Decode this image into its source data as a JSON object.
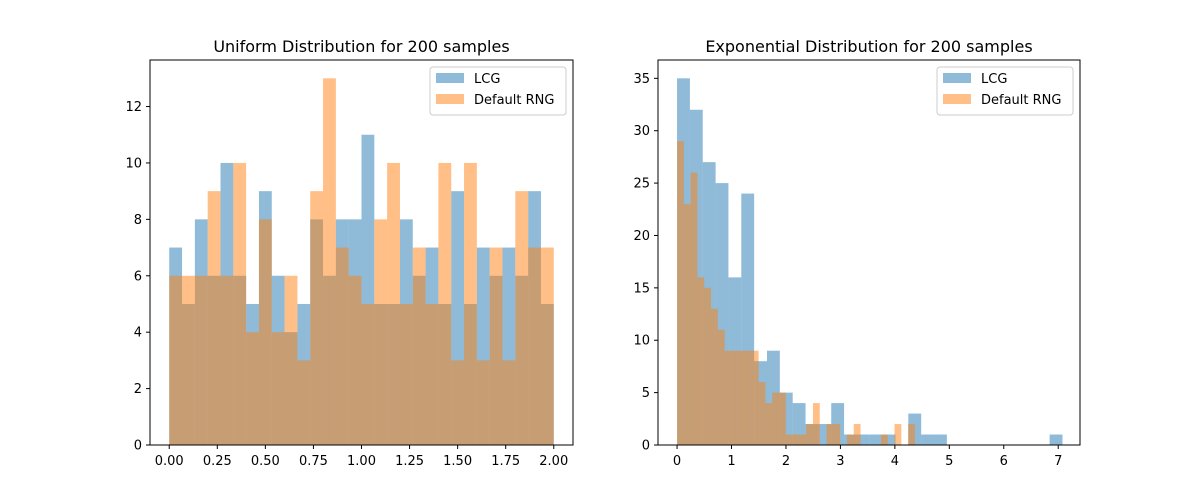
{
  "chart_data": [
    {
      "type": "histogram",
      "title": "Uniform Distribution for 200 samples",
      "xlabel": "",
      "ylabel": "",
      "xlim": [
        -0.1,
        2.1
      ],
      "ylim": [
        0,
        13.65
      ],
      "xticks": [
        0,
        0.25,
        0.5,
        0.75,
        1,
        1.25,
        1.5,
        1.75,
        2
      ],
      "xtick_labels": [
        "0.00",
        "0.25",
        "0.50",
        "0.75",
        "1.00",
        "1.25",
        "1.50",
        "1.75",
        "2.00"
      ],
      "yticks": [
        0,
        2,
        4,
        6,
        8,
        10,
        12
      ],
      "ytick_labels": [
        "0",
        "2",
        "4",
        "6",
        "8",
        "10",
        "12"
      ],
      "grid": false,
      "legend_position": "top-right",
      "series": [
        {
          "name": "LCG",
          "color": "#1f77b4",
          "bin_edges": [
            0.0,
            0.0667,
            0.1333,
            0.2,
            0.2667,
            0.3333,
            0.4,
            0.4667,
            0.5333,
            0.6,
            0.6667,
            0.7333,
            0.8,
            0.8667,
            0.9333,
            1.0,
            1.0667,
            1.1333,
            1.2,
            1.2667,
            1.3333,
            1.4,
            1.4667,
            1.5333,
            1.6,
            1.6667,
            1.7333,
            1.8,
            1.8667,
            1.9333,
            2.0
          ],
          "values": [
            7,
            5,
            8,
            6,
            10,
            6,
            5,
            9,
            6,
            4,
            5,
            8,
            6,
            8,
            8,
            11,
            5,
            5,
            8,
            6,
            7,
            5,
            9,
            5,
            7,
            6,
            7,
            6,
            9,
            5
          ]
        },
        {
          "name": "Default RNG",
          "color": "#ff7f0e",
          "bin_edges": [
            0.0,
            0.0667,
            0.1333,
            0.2,
            0.2667,
            0.3333,
            0.4,
            0.4667,
            0.5333,
            0.6,
            0.6667,
            0.7333,
            0.8,
            0.8667,
            0.9333,
            1.0,
            1.0667,
            1.1333,
            1.2,
            1.2667,
            1.3333,
            1.4,
            1.4667,
            1.5333,
            1.6,
            1.6667,
            1.7333,
            1.8,
            1.8667,
            1.9333,
            2.0
          ],
          "values": [
            6,
            6,
            6,
            9,
            6,
            10,
            4,
            8,
            4,
            6,
            3,
            9,
            13,
            7,
            6,
            5,
            8,
            10,
            5,
            7,
            5,
            10,
            3,
            10,
            3,
            7,
            3,
            9,
            7,
            7
          ]
        }
      ]
    },
    {
      "type": "histogram",
      "title": "Exponential Distribution for 200 samples",
      "xlabel": "",
      "ylabel": "",
      "xlim": [
        -0.35,
        7.4
      ],
      "ylim": [
        0,
        36.75
      ],
      "xticks": [
        0,
        1,
        2,
        3,
        4,
        5,
        6,
        7
      ],
      "xtick_labels": [
        "0",
        "1",
        "2",
        "3",
        "4",
        "5",
        "6",
        "7"
      ],
      "yticks": [
        0,
        5,
        10,
        15,
        20,
        25,
        30,
        35
      ],
      "ytick_labels": [
        "0",
        "5",
        "10",
        "15",
        "20",
        "25",
        "30",
        "35"
      ],
      "grid": false,
      "legend_position": "top-right",
      "series": [
        {
          "name": "LCG",
          "color": "#1f77b4",
          "bin_edges": [
            0.0,
            0.2359,
            0.4719,
            0.7078,
            0.9438,
            1.1797,
            1.4157,
            1.6516,
            1.8876,
            2.1235,
            2.3595,
            2.5954,
            2.8314,
            3.0673,
            3.3033,
            3.5392,
            3.7752,
            4.0111,
            4.2471,
            4.483,
            4.719,
            4.9549,
            5.1909,
            5.4268,
            5.6628,
            5.8987,
            6.1347,
            6.3706,
            6.6066,
            6.8425,
            7.0785
          ],
          "values": [
            35,
            32,
            27,
            25,
            16,
            24,
            8,
            9,
            5,
            4,
            2,
            2,
            4,
            1,
            1,
            1,
            1,
            0,
            3,
            1,
            1,
            0,
            0,
            0,
            0,
            0,
            0,
            0,
            0,
            1
          ]
        },
        {
          "name": "Default RNG",
          "color": "#ff7f0e",
          "bin_edges": [
            0.0,
            0.1248,
            0.2496,
            0.3744,
            0.4992,
            0.624,
            0.7488,
            0.8736,
            0.9984,
            1.1232,
            1.248,
            1.3728,
            1.4976,
            1.6224,
            1.7472,
            1.872,
            1.9968,
            2.1216,
            2.2464,
            2.3712,
            2.496,
            2.6208,
            2.7456,
            2.8704,
            2.9952,
            3.12,
            3.2448,
            3.3696,
            3.4944,
            3.6192,
            3.744,
            3.8688,
            3.9936,
            4.1184,
            4.2432,
            4.368
          ],
          "values": [
            29,
            23,
            26,
            16,
            15,
            13,
            11,
            9,
            9,
            9,
            9,
            9,
            6,
            4,
            5,
            5,
            1,
            1,
            1,
            2,
            4,
            0,
            2,
            2,
            0,
            1,
            2,
            0,
            0,
            0,
            1,
            0,
            2,
            0,
            2
          ]
        }
      ]
    }
  ]
}
